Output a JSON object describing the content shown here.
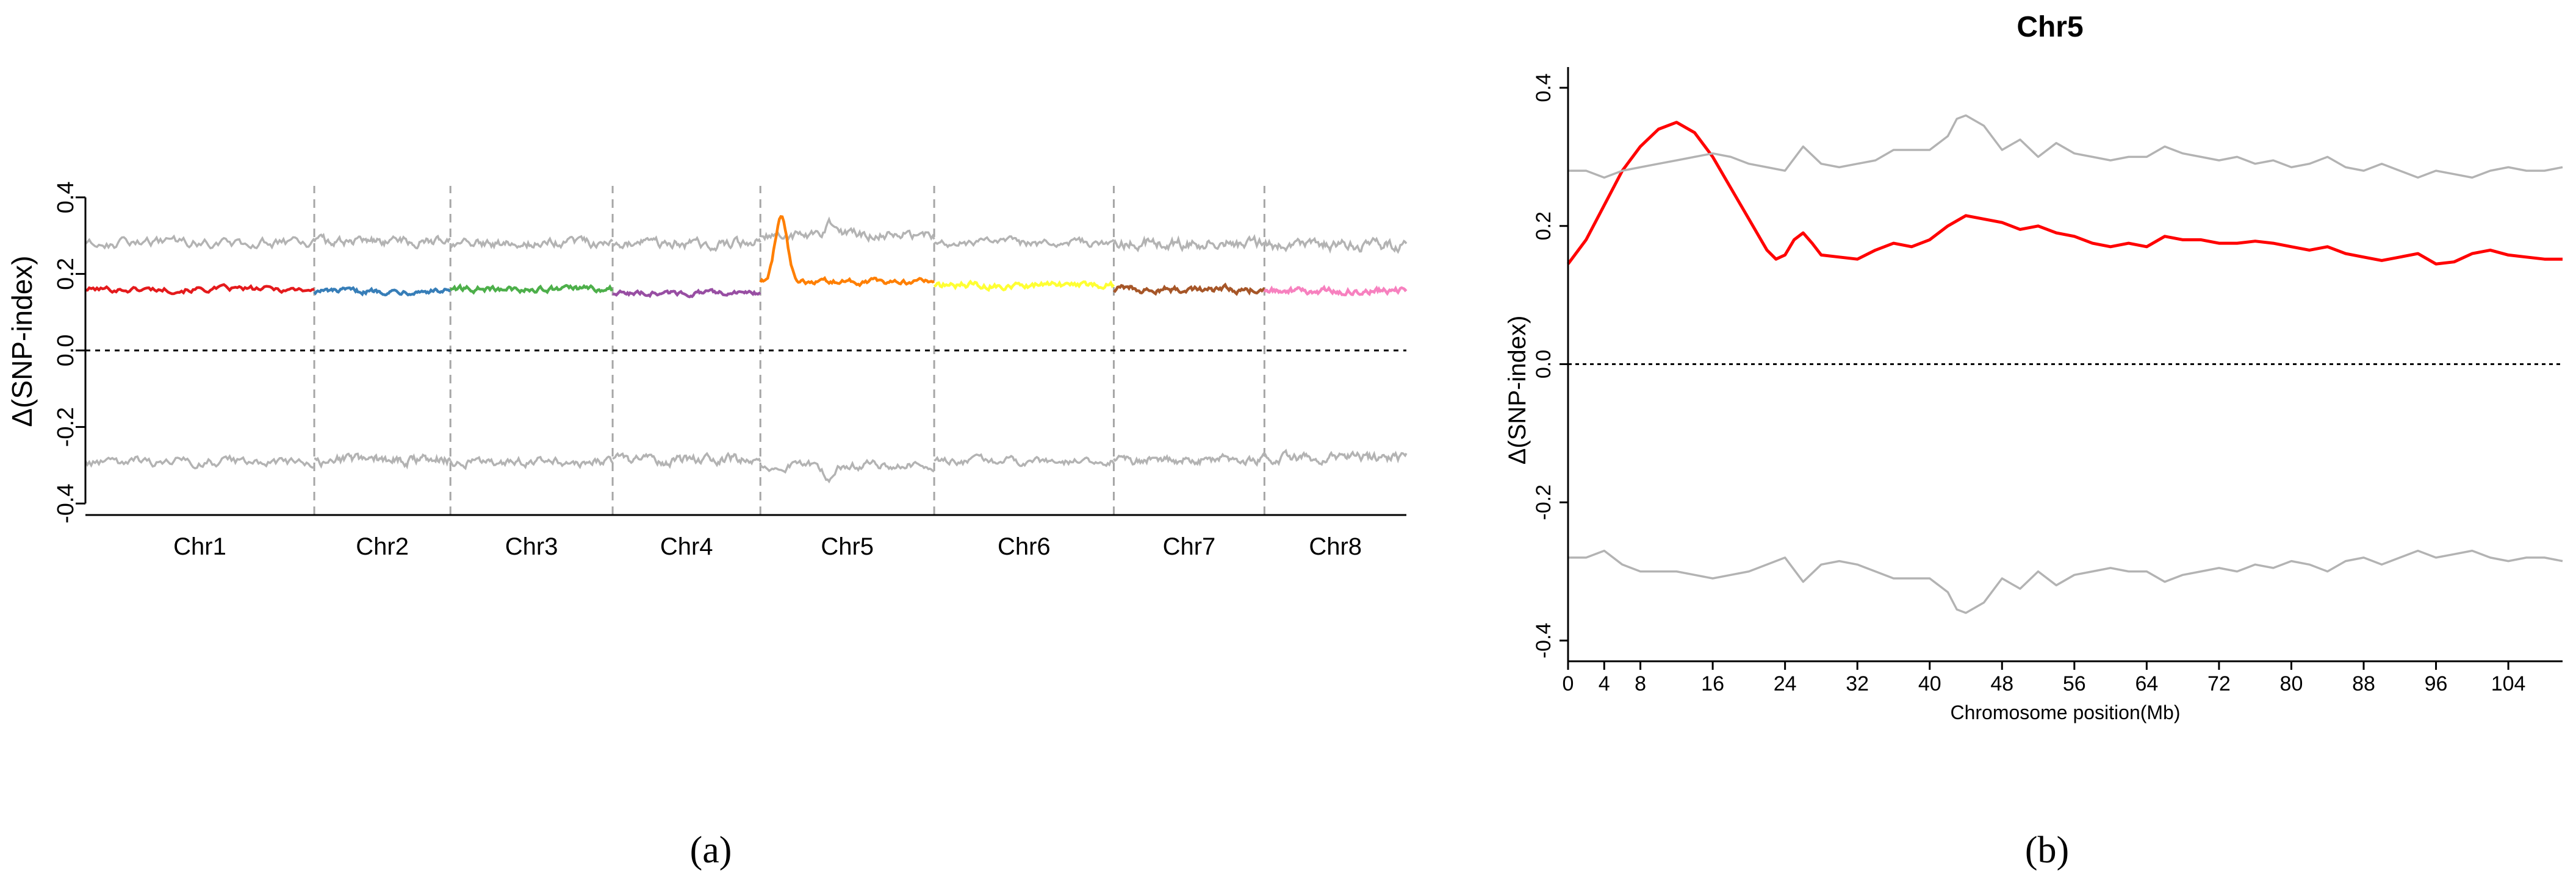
{
  "figure": {
    "label_a": "(a)",
    "label_b": "(b)"
  },
  "chart_data": [
    {
      "id": "a",
      "type": "line",
      "title": "",
      "xlabel": "",
      "ylabel": "Δ(SNP-index)",
      "ylim": [
        -0.43,
        0.43
      ],
      "yticks": [
        -0.4,
        -0.2,
        0.0,
        0.2,
        0.4
      ],
      "ytick_labels": [
        "-0.4",
        "-0.2",
        "0.0",
        "0.2",
        "0.4"
      ],
      "reference_line": 0.0,
      "chromosomes": [
        {
          "name": "Chr1",
          "color": "#e41a1c",
          "base": 0.16,
          "amp": 0.012,
          "upper": 0.28,
          "lower": -0.29,
          "peak": null
        },
        {
          "name": "Chr2",
          "color": "#377eb8",
          "base": 0.155,
          "amp": 0.01,
          "upper": 0.285,
          "lower": -0.285,
          "peak": null
        },
        {
          "name": "Chr3",
          "color": "#4daf4a",
          "base": 0.16,
          "amp": 0.01,
          "upper": 0.28,
          "lower": -0.29,
          "peak": null
        },
        {
          "name": "Chr4",
          "color": "#984ea3",
          "base": 0.15,
          "amp": 0.01,
          "upper": 0.28,
          "lower": -0.285,
          "peak": null
        },
        {
          "name": "Chr5",
          "color": "#ff7f00",
          "base": 0.18,
          "amp": 0.01,
          "upper": 0.3,
          "lower": -0.3,
          "peak": {
            "pos": 0.12,
            "value": 0.35
          }
        },
        {
          "name": "Chr6",
          "color": "#ffff33",
          "base": 0.17,
          "amp": 0.012,
          "upper": 0.28,
          "lower": -0.29,
          "peak": null
        },
        {
          "name": "Chr7",
          "color": "#a65628",
          "base": 0.16,
          "amp": 0.012,
          "upper": 0.28,
          "lower": -0.285,
          "peak": null
        },
        {
          "name": "Chr8",
          "color": "#f781bf",
          "base": 0.155,
          "amp": 0.01,
          "upper": 0.275,
          "lower": -0.28,
          "peak": null
        }
      ],
      "threshold_color": "#b3b3b3",
      "divider_color": "#a6a6a6"
    },
    {
      "id": "b",
      "type": "line",
      "title": "Chr5",
      "xlabel": "Chromosome position(Mb)",
      "ylabel": "Δ(SNP-index)",
      "xlim": [
        0,
        110
      ],
      "ylim": [
        -0.43,
        0.43
      ],
      "xticks": [
        0,
        4,
        8,
        16,
        24,
        32,
        40,
        48,
        56,
        64,
        72,
        80,
        88,
        96,
        104
      ],
      "yticks": [
        -0.4,
        -0.2,
        0.0,
        0.2,
        0.4
      ],
      "ytick_labels": [
        "-0.4",
        "-0.2",
        "0.0",
        "0.2",
        "0.4"
      ],
      "reference_line": 0.0,
      "series": [
        {
          "name": "Δ(SNP-index)",
          "color": "#ff0000",
          "x": [
            0,
            2,
            4,
            6,
            8,
            10,
            12,
            14,
            16,
            18,
            20,
            22,
            23,
            24,
            25,
            26,
            27,
            28,
            30,
            32,
            34,
            36,
            38,
            40,
            42,
            44,
            46,
            48,
            50,
            52,
            54,
            56,
            58,
            60,
            62,
            64,
            66,
            68,
            70,
            72,
            74,
            76,
            78,
            80,
            82,
            84,
            86,
            88,
            90,
            92,
            94,
            96,
            98,
            100,
            102,
            104,
            106,
            108,
            110
          ],
          "values": [
            0.145,
            0.18,
            0.23,
            0.28,
            0.315,
            0.34,
            0.35,
            0.335,
            0.3,
            0.255,
            0.21,
            0.165,
            0.152,
            0.158,
            0.18,
            0.19,
            0.175,
            0.158,
            0.155,
            0.152,
            0.165,
            0.175,
            0.17,
            0.18,
            0.2,
            0.215,
            0.21,
            0.205,
            0.195,
            0.2,
            0.19,
            0.185,
            0.175,
            0.17,
            0.175,
            0.17,
            0.185,
            0.18,
            0.18,
            0.175,
            0.175,
            0.178,
            0.175,
            0.17,
            0.165,
            0.17,
            0.16,
            0.155,
            0.15,
            0.155,
            0.16,
            0.145,
            0.148,
            0.16,
            0.165,
            0.158,
            0.155,
            0.152,
            0.152
          ]
        },
        {
          "name": "upper threshold",
          "color": "#b3b3b3",
          "x": [
            0,
            2,
            4,
            6,
            8,
            10,
            12,
            14,
            16,
            18,
            20,
            22,
            24,
            26,
            28,
            30,
            32,
            34,
            36,
            38,
            40,
            42,
            43,
            44,
            46,
            48,
            50,
            52,
            54,
            56,
            58,
            60,
            62,
            64,
            66,
            68,
            70,
            72,
            74,
            76,
            78,
            80,
            82,
            84,
            86,
            88,
            90,
            92,
            94,
            96,
            98,
            100,
            102,
            104,
            106,
            108,
            110
          ],
          "values": [
            0.28,
            0.28,
            0.27,
            0.28,
            0.285,
            0.29,
            0.295,
            0.3,
            0.305,
            0.3,
            0.29,
            0.285,
            0.28,
            0.315,
            0.29,
            0.285,
            0.29,
            0.295,
            0.31,
            0.31,
            0.31,
            0.33,
            0.355,
            0.36,
            0.345,
            0.31,
            0.325,
            0.3,
            0.32,
            0.305,
            0.3,
            0.295,
            0.3,
            0.3,
            0.315,
            0.305,
            0.3,
            0.295,
            0.3,
            0.29,
            0.295,
            0.285,
            0.29,
            0.3,
            0.285,
            0.28,
            0.29,
            0.28,
            0.27,
            0.28,
            0.275,
            0.27,
            0.28,
            0.285,
            0.28,
            0.28,
            0.285
          ]
        },
        {
          "name": "lower threshold",
          "color": "#b3b3b3",
          "x": [
            0,
            2,
            4,
            6,
            8,
            10,
            12,
            14,
            16,
            18,
            20,
            22,
            24,
            26,
            28,
            30,
            32,
            34,
            36,
            38,
            40,
            42,
            43,
            44,
            46,
            48,
            50,
            52,
            54,
            56,
            58,
            60,
            62,
            64,
            66,
            68,
            70,
            72,
            74,
            76,
            78,
            80,
            82,
            84,
            86,
            88,
            90,
            92,
            94,
            96,
            98,
            100,
            102,
            104,
            106,
            108,
            110
          ],
          "values": [
            -0.28,
            -0.28,
            -0.27,
            -0.29,
            -0.3,
            -0.3,
            -0.3,
            -0.305,
            -0.31,
            -0.305,
            -0.3,
            -0.29,
            -0.28,
            -0.315,
            -0.29,
            -0.285,
            -0.29,
            -0.3,
            -0.31,
            -0.31,
            -0.31,
            -0.33,
            -0.355,
            -0.36,
            -0.345,
            -0.31,
            -0.325,
            -0.3,
            -0.32,
            -0.305,
            -0.3,
            -0.295,
            -0.3,
            -0.3,
            -0.315,
            -0.305,
            -0.3,
            -0.295,
            -0.3,
            -0.29,
            -0.295,
            -0.285,
            -0.29,
            -0.3,
            -0.285,
            -0.28,
            -0.29,
            -0.28,
            -0.27,
            -0.28,
            -0.275,
            -0.27,
            -0.28,
            -0.285,
            -0.28,
            -0.28,
            -0.285
          ]
        }
      ]
    }
  ]
}
